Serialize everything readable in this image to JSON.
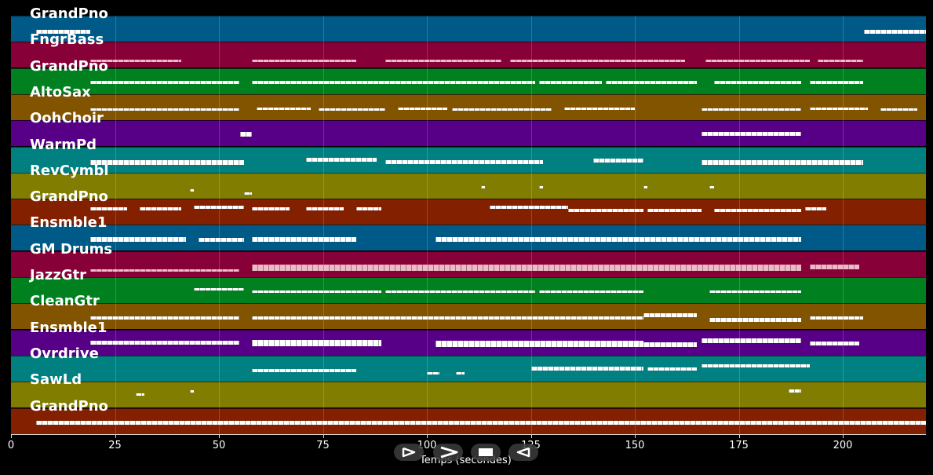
{
  "tracks": [
    {
      "name": "GrandPno",
      "color": "#005a87"
    },
    {
      "name": "FngrBass",
      "color": "#870037"
    },
    {
      "name": "GrandPno",
      "color": "#00801f"
    },
    {
      "name": "AltoSax",
      "color": "#825400"
    },
    {
      "name": "OohChoir",
      "color": "#570087"
    },
    {
      "name": "WarmPd",
      "color": "#008080"
    },
    {
      "name": "RevCymbl",
      "color": "#807d00"
    },
    {
      "name": "GrandPno",
      "color": "#822000"
    },
    {
      "name": "Ensmble1",
      "color": "#005a87"
    },
    {
      "name": "GM Drums",
      "color": "#870037"
    },
    {
      "name": "JazzGtr",
      "color": "#00801f"
    },
    {
      "name": "CleanGtr",
      "color": "#825400"
    },
    {
      "name": "Ensmble1",
      "color": "#570087"
    },
    {
      "name": "Ovrdrive",
      "color": "#008080"
    },
    {
      "name": "SawLd",
      "color": "#807d00"
    },
    {
      "name": "GrandPno",
      "color": "#822000"
    }
  ],
  "axis": {
    "ticks": [
      "0",
      "25",
      "50",
      "75",
      "100",
      "125",
      "150",
      "175",
      "200"
    ],
    "xlabel": "Temps (secondes)",
    "range": [
      0,
      220
    ]
  },
  "transport": [
    {
      "icon": "play-icon"
    },
    {
      "icon": "fast-forward-icon"
    },
    {
      "icon": "stop-icon"
    },
    {
      "icon": "rewind-icon"
    }
  ]
}
